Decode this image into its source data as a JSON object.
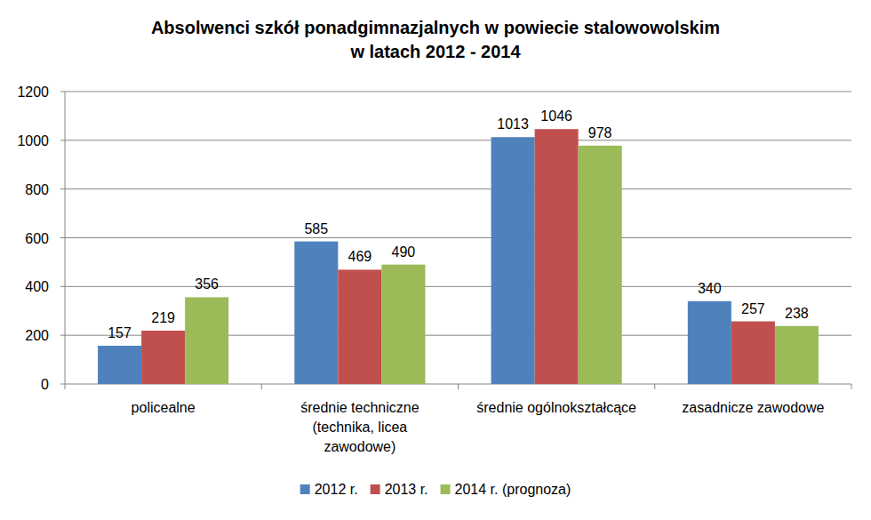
{
  "chart_data": {
    "type": "bar",
    "title": "Absolwenci szkół ponadgimnazjalnych  w powiecie stalowowolskim\nw latach 2012 - 2014",
    "categories": [
      "policealne",
      "średnie techniczne (technika, licea zawodowe)",
      "średnie ogólnokształcące",
      "zasadnicze zawodowe"
    ],
    "series": [
      {
        "name": "2012 r.",
        "color": "#4f81bd",
        "values": [
          157,
          585,
          1013,
          340
        ]
      },
      {
        "name": "2013 r.",
        "color": "#c0504d",
        "values": [
          219,
          469,
          1046,
          257
        ]
      },
      {
        "name": "2014 r. (prognoza)",
        "color": "#9bbb59",
        "values": [
          356,
          490,
          978,
          238
        ]
      }
    ],
    "ylim": [
      0,
      1200
    ],
    "yticks": [
      0,
      200,
      400,
      600,
      800,
      1000,
      1200
    ],
    "grid": true,
    "data_labels": true,
    "legend": "bottom"
  }
}
